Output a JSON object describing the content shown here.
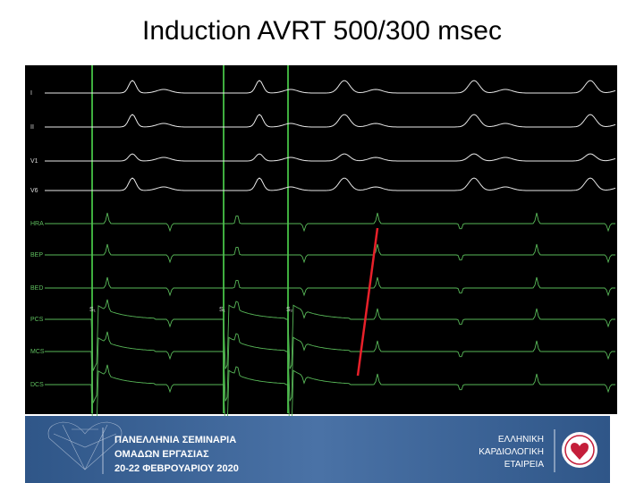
{
  "header": {
    "title": "Induction AVRT 500/300 msec"
  },
  "tracing": {
    "channels": [
      "I",
      "II",
      "V1",
      "V6",
      "HRA",
      "BEP",
      "BED",
      "PCS",
      "MCS",
      "DCS"
    ],
    "stimulus_labels": [
      "S₁",
      "S₁",
      "S₂"
    ]
  },
  "footer": {
    "event_lines": [
      "ΠΑΝΕΛΛΗΝΙΑ ΣΕΜΙΝΑΡΙΑ",
      "ΟΜΑΔΩΝ ΕΡΓΑΣΙΑΣ",
      "20-22 ΦΕΒΡΟΥΑΡΙΟΥ 2020"
    ],
    "society_lines": [
      "ΕΛΛΗΝΙΚΗ",
      "ΚΑΡΔΙΟΛΟΓΙΚΗ",
      "ΕΤΑΙΡΕΙΑ"
    ]
  }
}
